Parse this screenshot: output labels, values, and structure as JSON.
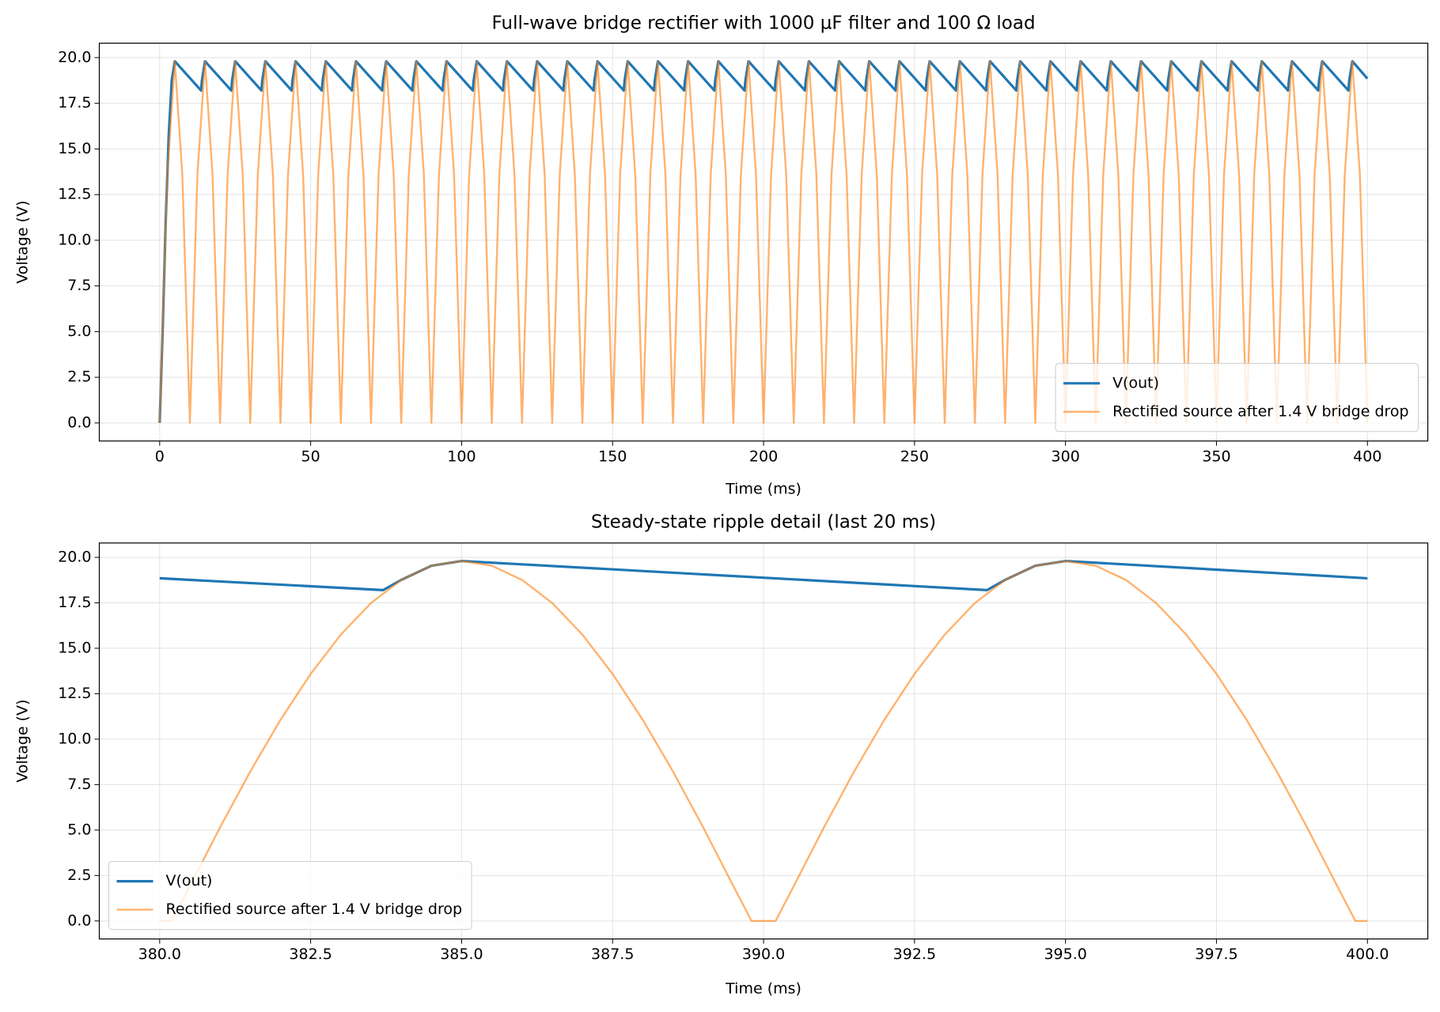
{
  "chart_data": [
    {
      "type": "line",
      "title": "Full-wave bridge rectifier with 1000 µF filter and 100 Ω load",
      "x_label": "Time (ms)",
      "y_label": "Voltage (V)",
      "xlim": [
        -20,
        420
      ],
      "ylim": [
        -0.99,
        20.79
      ],
      "xticks": [
        0,
        50,
        100,
        150,
        200,
        250,
        300,
        350,
        400
      ],
      "yticks": [
        {
          "value": 0,
          "label": "0.0"
        },
        2.5,
        {
          "value": 5,
          "label": "5.0"
        },
        7.5,
        {
          "value": 10,
          "label": "10.0"
        },
        12.5,
        {
          "value": 15,
          "label": "15.0"
        },
        17.5,
        {
          "value": 20,
          "label": "20.0"
        }
      ],
      "grid": true,
      "legend": "lower right",
      "series": [
        {
          "name": "V(out)",
          "color": "#1f77b4",
          "x": [
            0,
            1,
            2,
            3,
            4,
            5,
            13.7,
            14,
            15,
            23.7,
            24,
            25,
            33.7,
            34,
            35,
            43.7,
            44,
            45,
            53.7,
            54,
            55,
            63.7,
            64,
            65,
            73.7,
            74,
            75,
            83.7,
            84,
            85,
            93.7,
            94,
            95,
            103.7,
            104,
            105,
            113.7,
            114,
            115,
            123.7,
            124,
            125,
            133.7,
            134,
            135,
            143.7,
            144,
            145,
            153.7,
            154,
            155,
            163.7,
            164,
            165,
            173.7,
            174,
            175,
            183.7,
            184,
            185,
            193.7,
            194,
            195,
            203.7,
            204,
            205,
            213.7,
            214,
            215,
            223.7,
            224,
            225,
            233.7,
            234,
            235,
            243.7,
            244,
            245,
            253.7,
            254,
            255,
            263.7,
            264,
            265,
            273.7,
            274,
            275,
            283.7,
            284,
            285,
            293.7,
            294,
            295,
            303.7,
            304,
            305,
            313.7,
            314,
            315,
            323.7,
            324,
            325,
            333.7,
            334,
            335,
            343.7,
            344,
            345,
            353.7,
            354,
            355,
            363.7,
            364,
            365,
            373.7,
            374,
            375,
            383.7,
            384,
            385,
            393.7,
            394,
            395,
            400
          ],
          "values": [
            0,
            5.15,
            11.07,
            15.75,
            18.76,
            19.8,
            18.2,
            18.76,
            19.8,
            18.2,
            18.76,
            19.8,
            18.2,
            18.76,
            19.8,
            18.2,
            18.76,
            19.8,
            18.2,
            18.76,
            19.8,
            18.2,
            18.76,
            19.8,
            18.2,
            18.76,
            19.8,
            18.2,
            18.76,
            19.8,
            18.2,
            18.76,
            19.8,
            18.2,
            18.76,
            19.8,
            18.2,
            18.76,
            19.8,
            18.2,
            18.76,
            19.8,
            18.2,
            18.76,
            19.8,
            18.2,
            18.76,
            19.8,
            18.2,
            18.76,
            19.8,
            18.2,
            18.76,
            19.8,
            18.2,
            18.76,
            19.8,
            18.2,
            18.76,
            19.8,
            18.2,
            18.76,
            19.8,
            18.2,
            18.76,
            19.8,
            18.2,
            18.76,
            19.8,
            18.2,
            18.76,
            19.8,
            18.2,
            18.76,
            19.8,
            18.2,
            18.76,
            19.8,
            18.2,
            18.76,
            19.8,
            18.2,
            18.76,
            19.8,
            18.2,
            18.76,
            19.8,
            18.2,
            18.76,
            19.8,
            18.2,
            18.76,
            19.8,
            18.2,
            18.76,
            19.8,
            18.2,
            18.76,
            19.8,
            18.2,
            18.76,
            19.8,
            18.2,
            18.76,
            19.8,
            18.2,
            18.76,
            19.8,
            18.2,
            18.76,
            19.8,
            18.2,
            18.76,
            19.8,
            18.2,
            18.76,
            19.8,
            18.2,
            18.76,
            19.8,
            18.2,
            18.76,
            19.8,
            18.85
          ]
        },
        {
          "name": "Rectified source after 1.4 V bridge drop",
          "color": "#ff7f0e",
          "alpha": 0.6,
          "x": [
            0,
            2.5,
            5,
            7.5,
            10,
            12.5,
            15,
            17.5,
            20,
            22.5,
            25,
            27.5,
            30,
            32.5,
            35,
            37.5,
            40,
            42.5,
            45,
            47.5,
            50,
            52.5,
            55,
            57.5,
            60,
            62.5,
            65,
            67.5,
            70,
            72.5,
            75,
            77.5,
            80,
            82.5,
            85,
            87.5,
            90,
            92.5,
            95,
            97.5,
            100,
            102.5,
            105,
            107.5,
            110,
            112.5,
            115,
            117.5,
            120,
            122.5,
            125,
            127.5,
            130,
            132.5,
            135,
            137.5,
            140,
            142.5,
            145,
            147.5,
            150,
            152.5,
            155,
            157.5,
            160,
            162.5,
            165,
            167.5,
            170,
            172.5,
            175,
            177.5,
            180,
            182.5,
            185,
            187.5,
            190,
            192.5,
            195,
            197.5,
            200,
            202.5,
            205,
            207.5,
            210,
            212.5,
            215,
            217.5,
            220,
            222.5,
            225,
            227.5,
            230,
            232.5,
            235,
            237.5,
            240,
            242.5,
            245,
            247.5,
            250,
            252.5,
            255,
            257.5,
            260,
            262.5,
            265,
            267.5,
            270,
            272.5,
            275,
            277.5,
            280,
            282.5,
            285,
            287.5,
            290,
            292.5,
            295,
            297.5,
            300,
            302.5,
            305,
            307.5,
            310,
            312.5,
            315,
            317.5,
            320,
            322.5,
            325,
            327.5,
            330,
            332.5,
            335,
            337.5,
            340,
            342.5,
            345,
            347.5,
            350,
            352.5,
            355,
            357.5,
            360,
            362.5,
            365,
            367.5,
            370,
            372.5,
            375,
            377.5,
            380,
            382.5,
            385,
            387.5,
            390,
            392.5,
            395,
            397.5,
            400
          ],
          "values": [
            0,
            13.59,
            19.8,
            13.59,
            0,
            13.59,
            19.8,
            13.59,
            0,
            13.59,
            19.8,
            13.59,
            0,
            13.59,
            19.8,
            13.59,
            0,
            13.59,
            19.8,
            13.59,
            0,
            13.59,
            19.8,
            13.59,
            0,
            13.59,
            19.8,
            13.59,
            0,
            13.59,
            19.8,
            13.59,
            0,
            13.59,
            19.8,
            13.59,
            0,
            13.59,
            19.8,
            13.59,
            0,
            13.59,
            19.8,
            13.59,
            0,
            13.59,
            19.8,
            13.59,
            0,
            13.59,
            19.8,
            13.59,
            0,
            13.59,
            19.8,
            13.59,
            0,
            13.59,
            19.8,
            13.59,
            0,
            13.59,
            19.8,
            13.59,
            0,
            13.59,
            19.8,
            13.59,
            0,
            13.59,
            19.8,
            13.59,
            0,
            13.59,
            19.8,
            13.59,
            0,
            13.59,
            19.8,
            13.59,
            0,
            13.59,
            19.8,
            13.59,
            0,
            13.59,
            19.8,
            13.59,
            0,
            13.59,
            19.8,
            13.59,
            0,
            13.59,
            19.8,
            13.59,
            0,
            13.59,
            19.8,
            13.59,
            0,
            13.59,
            19.8,
            13.59,
            0,
            13.59,
            19.8,
            13.59,
            0,
            13.59,
            19.8,
            13.59,
            0,
            13.59,
            19.8,
            13.59,
            0,
            13.59,
            19.8,
            13.59,
            0,
            13.59,
            19.8,
            13.59,
            0,
            13.59,
            19.8,
            13.59,
            0,
            13.59,
            19.8,
            13.59,
            0,
            13.59,
            19.8,
            13.59,
            0,
            13.59,
            19.8,
            13.59,
            0,
            13.59,
            19.8,
            13.59,
            0,
            13.59,
            19.8,
            13.59,
            0,
            13.59,
            19.8,
            13.59,
            0,
            13.59,
            19.8,
            13.59,
            0,
            13.59,
            19.8,
            13.59,
            0
          ]
        }
      ]
    },
    {
      "type": "line",
      "title": "Steady-state ripple detail (last 20 ms)",
      "x_label": "Time (ms)",
      "y_label": "Voltage (V)",
      "xlim": [
        379,
        401
      ],
      "ylim": [
        -0.99,
        20.79
      ],
      "xticks": [
        {
          "value": 380,
          "label": "380.0"
        },
        382.5,
        {
          "value": 385,
          "label": "385.0"
        },
        387.5,
        {
          "value": 390,
          "label": "390.0"
        },
        392.5,
        {
          "value": 395,
          "label": "395.0"
        },
        397.5,
        {
          "value": 400,
          "label": "400.0"
        }
      ],
      "yticks": [
        {
          "value": 0,
          "label": "0.0"
        },
        2.5,
        {
          "value": 5,
          "label": "5.0"
        },
        7.5,
        {
          "value": 10,
          "label": "10.0"
        },
        12.5,
        {
          "value": 15,
          "label": "15.0"
        },
        17.5,
        {
          "value": 20,
          "label": "20.0"
        }
      ],
      "grid": true,
      "legend": "lower left",
      "series": [
        {
          "name": "V(out)",
          "color": "#1f77b4",
          "x": [
            380,
            383.7,
            384,
            384.5,
            385,
            393.7,
            394,
            394.5,
            395,
            400
          ],
          "values": [
            18.85,
            18.2,
            18.76,
            19.54,
            19.8,
            18.2,
            18.76,
            19.54,
            19.8,
            18.85
          ]
        },
        {
          "name": "Rectified source after 1.4 V bridge drop",
          "color": "#ff7f0e",
          "alpha": 0.6,
          "x": [
            380,
            380.2,
            380.5,
            381,
            381.5,
            382,
            382.5,
            383,
            383.5,
            384,
            384.5,
            385,
            385.5,
            386,
            386.5,
            387,
            387.5,
            388,
            388.5,
            389,
            389.5,
            389.8,
            390.2,
            390.5,
            391,
            391.5,
            392,
            392.5,
            393,
            393.5,
            394,
            394.5,
            395,
            395.5,
            396,
            396.5,
            397,
            397.5,
            398,
            398.5,
            399,
            399.5,
            399.8,
            400
          ],
          "values": [
            0,
            0,
            1.92,
            5.15,
            8.22,
            11.06,
            13.59,
            15.75,
            17.49,
            18.76,
            19.54,
            19.8,
            19.54,
            18.76,
            17.49,
            15.75,
            13.59,
            11.06,
            8.22,
            5.15,
            1.92,
            0,
            0,
            1.92,
            5.15,
            8.22,
            11.06,
            13.59,
            15.75,
            17.49,
            18.76,
            19.54,
            19.8,
            19.54,
            18.76,
            17.49,
            15.75,
            13.59,
            11.06,
            8.22,
            5.15,
            1.92,
            0,
            0
          ]
        }
      ]
    }
  ]
}
